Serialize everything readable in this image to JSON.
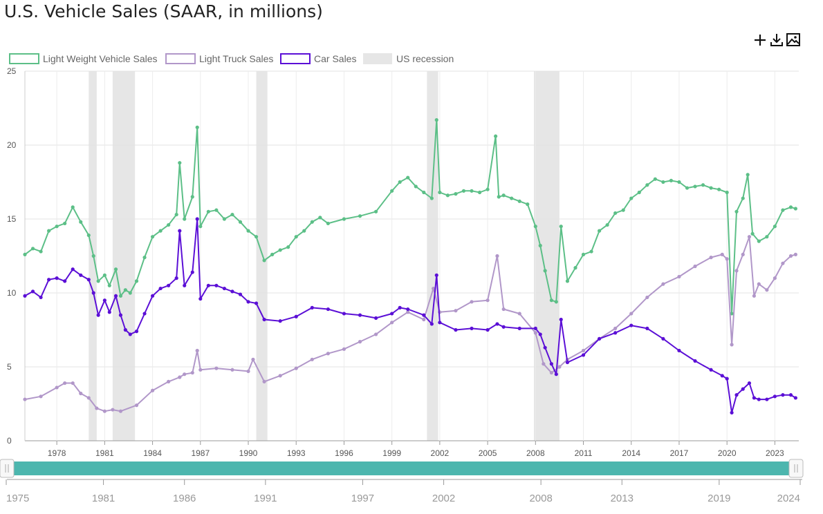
{
  "title": "U.S. Vehicle Sales (SAAR, in millions)",
  "toolbar": {
    "icons": [
      "plus-icon",
      "download-icon",
      "image-icon"
    ]
  },
  "colors": {
    "light_weight": "#5cbf87",
    "light_truck": "#b197c9",
    "car": "#5b0fd6",
    "recession": "#e6e6e6",
    "slider_fill": "#4cb6ae"
  },
  "chart_data": {
    "type": "line",
    "title": "U.S. Vehicle Sales (SAAR, in millions)",
    "ylim": [
      0,
      25
    ],
    "yticks": [
      0,
      5,
      10,
      15,
      20,
      25
    ],
    "xlim": [
      1976.0,
      2024.5
    ],
    "xticks": [
      "1978",
      "1981",
      "1984",
      "1987",
      "1990",
      "1993",
      "1996",
      "1999",
      "2002",
      "2005",
      "2008",
      "2011",
      "2014",
      "2017",
      "2020",
      "2023"
    ],
    "legend": [
      "Light Weight Vehicle Sales",
      "Light Truck Sales",
      "Car Sales",
      "US recession"
    ],
    "legend_position": "top-left",
    "grid": true,
    "recessions": [
      [
        1980.0,
        1980.5
      ],
      [
        1981.5,
        1982.9
      ],
      [
        1990.5,
        1991.2
      ],
      [
        2001.2,
        2001.9
      ],
      [
        2007.9,
        2009.5
      ]
    ],
    "series": [
      {
        "name": "Light Weight Vehicle Sales",
        "x": [
          1976.0,
          1976.5,
          1977.0,
          1977.5,
          1978.0,
          1978.5,
          1979.0,
          1979.5,
          1980.0,
          1980.3,
          1980.6,
          1981.0,
          1981.3,
          1981.7,
          1982.0,
          1982.3,
          1982.6,
          1983.0,
          1983.5,
          1984.0,
          1984.5,
          1985.0,
          1985.5,
          1985.7,
          1986.0,
          1986.5,
          1986.8,
          1987.0,
          1987.5,
          1988.0,
          1988.5,
          1989.0,
          1989.5,
          1990.0,
          1990.5,
          1991.0,
          1991.5,
          1992.0,
          1992.5,
          1993.0,
          1993.5,
          1994.0,
          1994.5,
          1995.0,
          1996.0,
          1997.0,
          1998.0,
          1999.0,
          1999.5,
          2000.0,
          2000.5,
          2001.0,
          2001.5,
          2001.8,
          2002.0,
          2002.5,
          2003.0,
          2003.5,
          2004.0,
          2004.5,
          2005.0,
          2005.5,
          2005.7,
          2006.0,
          2006.5,
          2007.0,
          2007.5,
          2008.0,
          2008.3,
          2008.6,
          2009.0,
          2009.3,
          2009.6,
          2010.0,
          2010.5,
          2011.0,
          2011.5,
          2012.0,
          2012.5,
          2013.0,
          2013.5,
          2014.0,
          2014.5,
          2015.0,
          2015.5,
          2016.0,
          2016.5,
          2017.0,
          2017.5,
          2018.0,
          2018.5,
          2019.0,
          2019.5,
          2020.0,
          2020.3,
          2020.6,
          2021.0,
          2021.3,
          2021.6,
          2022.0,
          2022.5,
          2023.0,
          2023.5,
          2024.0,
          2024.3
        ],
        "values": [
          12.6,
          13.0,
          12.8,
          14.2,
          14.5,
          14.7,
          15.8,
          14.8,
          13.9,
          12.5,
          10.8,
          11.2,
          10.5,
          11.6,
          9.8,
          10.2,
          10.0,
          10.8,
          12.4,
          13.8,
          14.2,
          14.6,
          15.3,
          18.8,
          15.0,
          16.5,
          21.2,
          14.5,
          15.5,
          15.6,
          15.0,
          15.3,
          14.8,
          14.2,
          13.8,
          12.2,
          12.6,
          12.9,
          13.1,
          13.8,
          14.2,
          14.8,
          15.1,
          14.7,
          15.0,
          15.2,
          15.5,
          16.9,
          17.5,
          17.8,
          17.2,
          16.8,
          16.4,
          21.7,
          16.8,
          16.6,
          16.7,
          16.9,
          16.9,
          16.8,
          17.0,
          20.6,
          16.5,
          16.6,
          16.4,
          16.2,
          16.0,
          14.5,
          13.2,
          11.5,
          9.5,
          9.4,
          14.5,
          10.8,
          11.7,
          12.6,
          12.8,
          14.2,
          14.6,
          15.4,
          15.6,
          16.4,
          16.8,
          17.3,
          17.7,
          17.5,
          17.6,
          17.5,
          17.1,
          17.2,
          17.3,
          17.1,
          17.0,
          16.8,
          8.6,
          15.5,
          16.4,
          18.0,
          14.0,
          13.5,
          13.8,
          14.5,
          15.6,
          15.8,
          15.7
        ]
      },
      {
        "name": "Light Truck Sales",
        "x": [
          1976.0,
          1977.0,
          1978.0,
          1978.5,
          1979.0,
          1979.5,
          1980.0,
          1980.5,
          1981.0,
          1981.5,
          1982.0,
          1983.0,
          1984.0,
          1985.0,
          1985.7,
          1986.0,
          1986.5,
          1986.8,
          1987.0,
          1988.0,
          1989.0,
          1990.0,
          1990.3,
          1991.0,
          1992.0,
          1993.0,
          1994.0,
          1995.0,
          1996.0,
          1997.0,
          1998.0,
          1999.0,
          2000.0,
          2001.0,
          2001.6,
          2002.0,
          2003.0,
          2004.0,
          2005.0,
          2005.6,
          2006.0,
          2007.0,
          2008.0,
          2008.5,
          2009.0,
          2009.5,
          2010.0,
          2011.0,
          2012.0,
          2013.0,
          2014.0,
          2015.0,
          2016.0,
          2017.0,
          2018.0,
          2019.0,
          2019.7,
          2020.0,
          2020.3,
          2020.6,
          2021.0,
          2021.4,
          2021.7,
          2022.0,
          2022.5,
          2023.0,
          2023.5,
          2024.0,
          2024.3
        ],
        "values": [
          2.8,
          3.0,
          3.6,
          3.9,
          3.9,
          3.2,
          2.9,
          2.2,
          2.0,
          2.1,
          2.0,
          2.4,
          3.4,
          4.0,
          4.3,
          4.5,
          4.6,
          6.1,
          4.8,
          4.9,
          4.8,
          4.7,
          5.5,
          4.0,
          4.4,
          4.9,
          5.5,
          5.9,
          6.2,
          6.7,
          7.2,
          8.0,
          8.7,
          8.2,
          10.3,
          8.7,
          8.8,
          9.4,
          9.5,
          12.5,
          8.9,
          8.6,
          7.3,
          5.2,
          4.6,
          5.0,
          5.5,
          6.1,
          6.9,
          7.6,
          8.6,
          9.7,
          10.6,
          11.1,
          11.8,
          12.4,
          12.6,
          12.3,
          6.5,
          11.5,
          12.6,
          13.8,
          9.8,
          10.6,
          10.2,
          11.0,
          12.0,
          12.5,
          12.6
        ]
      },
      {
        "name": "Car Sales",
        "x": [
          1976.0,
          1976.5,
          1977.0,
          1977.5,
          1978.0,
          1978.5,
          1979.0,
          1979.5,
          1980.0,
          1980.3,
          1980.6,
          1981.0,
          1981.3,
          1981.7,
          1982.0,
          1982.3,
          1982.6,
          1983.0,
          1983.5,
          1984.0,
          1984.5,
          1985.0,
          1985.5,
          1985.7,
          1986.0,
          1986.5,
          1986.8,
          1987.0,
          1987.5,
          1988.0,
          1988.5,
          1989.0,
          1989.5,
          1990.0,
          1990.5,
          1991.0,
          1992.0,
          1993.0,
          1994.0,
          1995.0,
          1996.0,
          1997.0,
          1998.0,
          1999.0,
          1999.5,
          2000.0,
          2001.0,
          2001.5,
          2001.8,
          2002.0,
          2003.0,
          2004.0,
          2005.0,
          2005.6,
          2006.0,
          2007.0,
          2008.0,
          2008.3,
          2008.6,
          2009.0,
          2009.3,
          2009.6,
          2010.0,
          2011.0,
          2012.0,
          2013.0,
          2014.0,
          2015.0,
          2016.0,
          2017.0,
          2018.0,
          2019.0,
          2019.7,
          2020.0,
          2020.3,
          2020.6,
          2021.0,
          2021.4,
          2021.7,
          2022.0,
          2022.5,
          2023.0,
          2023.5,
          2024.0,
          2024.3
        ],
        "values": [
          9.8,
          10.1,
          9.7,
          10.9,
          11.0,
          10.8,
          11.6,
          11.2,
          10.9,
          10.0,
          8.5,
          9.5,
          8.7,
          9.8,
          8.5,
          7.5,
          7.2,
          7.4,
          8.6,
          9.8,
          10.3,
          10.5,
          11.0,
          14.2,
          10.5,
          11.4,
          15.0,
          9.6,
          10.5,
          10.5,
          10.3,
          10.1,
          9.9,
          9.4,
          9.3,
          8.2,
          8.1,
          8.4,
          9.0,
          8.9,
          8.6,
          8.5,
          8.3,
          8.6,
          9.0,
          8.9,
          8.5,
          7.9,
          11.2,
          8.0,
          7.5,
          7.6,
          7.5,
          7.9,
          7.7,
          7.6,
          7.6,
          7.2,
          6.3,
          5.2,
          4.5,
          8.2,
          5.3,
          5.8,
          6.9,
          7.3,
          7.8,
          7.6,
          6.9,
          6.1,
          5.4,
          4.8,
          4.4,
          4.2,
          1.9,
          3.1,
          3.5,
          3.9,
          2.9,
          2.8,
          2.8,
          3.0,
          3.1,
          3.1,
          2.9
        ]
      }
    ]
  },
  "navigator": {
    "labels": [
      "1975",
      "1981",
      "1986",
      "1991",
      "1997",
      "2002",
      "2008",
      "2013",
      "2019",
      "2024"
    ]
  }
}
